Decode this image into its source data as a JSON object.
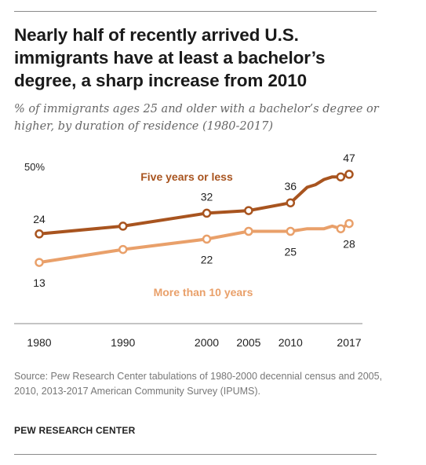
{
  "title": "Nearly half of recently arrived U.S. immigrants have at least a bachelor’s degree, a sharp increase from 2010",
  "subtitle": "% of immigrants ages 25 and older with a bachelor’s degree or higher, by duration of residence (1980-2017)",
  "source": "Source: Pew Research Center tabulations of 1980-2000 decennial census and 2005, 2010, 2013-2017 American Community Survey (IPUMS).",
  "brand": "PEW RESEARCH CENTER",
  "colors": {
    "five_or_less": "#a8541f",
    "more_than_ten": "#e9a06a",
    "axis": "#8a8a8a"
  },
  "chart_data": {
    "type": "line",
    "title": "",
    "xlabel": "",
    "ylabel": "",
    "y_top_label": "50%",
    "grid": false,
    "x_tick_labels": [
      "1980",
      "1990",
      "2000",
      "2005",
      "2010",
      "2017"
    ],
    "x": [
      1980,
      1990,
      2000,
      2005,
      2010,
      2012,
      2013,
      2014,
      2015,
      2016,
      2017
    ],
    "ylim": [
      0,
      50
    ],
    "series": [
      {
        "name": "Five years or less",
        "values": [
          24,
          27,
          32,
          33,
          36,
          42,
          43,
          45,
          46,
          46,
          47
        ],
        "markers": [
          1980,
          1990,
          2000,
          2005,
          2010,
          2016,
          2017
        ],
        "labels": [
          {
            "x": 1980,
            "text": "24"
          },
          {
            "x": 2000,
            "text": "32"
          },
          {
            "x": 2010,
            "text": "36"
          },
          {
            "x": 2017,
            "text": "47"
          }
        ]
      },
      {
        "name": "More than 10 years",
        "values": [
          13,
          18,
          22,
          25,
          25,
          26,
          26,
          26,
          27,
          26,
          28
        ],
        "markers": [
          1980,
          1990,
          2000,
          2005,
          2010,
          2016,
          2017
        ],
        "labels": [
          {
            "x": 1980,
            "text": "13"
          },
          {
            "x": 2000,
            "text": "22"
          },
          {
            "x": 2010,
            "text": "25"
          },
          {
            "x": 2017,
            "text": "28"
          }
        ]
      }
    ]
  }
}
